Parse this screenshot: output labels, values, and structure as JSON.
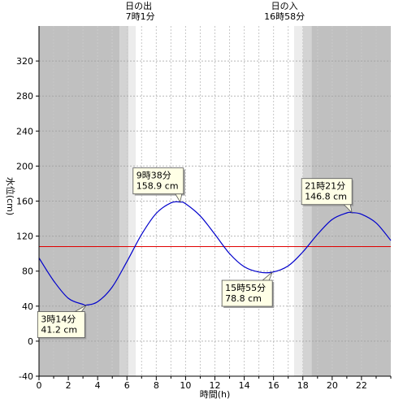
{
  "chart_data": {
    "type": "line",
    "xlabel": "時間(h)",
    "ylabel": "水位(cm)",
    "xlim": [
      0,
      24
    ],
    "ylim": [
      -40,
      360
    ],
    "x_ticks": [
      0,
      2,
      4,
      6,
      8,
      10,
      12,
      14,
      16,
      18,
      20,
      22
    ],
    "y_ticks": [
      -40,
      0,
      40,
      80,
      120,
      160,
      200,
      240,
      280,
      320
    ],
    "grid": true,
    "reference_line": {
      "value": 108,
      "color": "#e00000"
    },
    "sunrise": {
      "label": "日の出",
      "time_label": "7時1分",
      "hour": 7.017
    },
    "sunset": {
      "label": "日の入",
      "time_label": "16時58分",
      "hour": 16.967
    },
    "bands": [
      {
        "from": 0,
        "to": 5.5,
        "kind": "night"
      },
      {
        "from": 5.5,
        "to": 6.1,
        "kind": "twilight"
      },
      {
        "from": 6.1,
        "to": 6.6,
        "kind": "dawn"
      },
      {
        "from": 17.4,
        "to": 18.0,
        "kind": "dawn"
      },
      {
        "from": 18.0,
        "to": 18.6,
        "kind": "twilight"
      },
      {
        "from": 18.6,
        "to": 24,
        "kind": "night"
      }
    ],
    "colors": {
      "night": "#c0c0c0",
      "twilight": "#d3d3d3",
      "dawn": "#ececec",
      "day": "#ffffff",
      "line": "#0000cc",
      "callout_bg": "#ffffe6"
    },
    "series": [
      {
        "x": [
          0,
          1,
          2,
          3,
          3.233,
          4,
          5,
          6,
          7,
          8,
          9,
          9.633,
          10,
          11,
          12,
          13,
          14,
          15,
          15.917,
          17,
          18,
          19,
          20,
          21,
          21.35,
          22,
          23,
          24
        ],
        "values": [
          95,
          69,
          49,
          42,
          41.2,
          45,
          62,
          91,
          122,
          146,
          158,
          158.9,
          157,
          143,
          122,
          100,
          85,
          79,
          78.8,
          86,
          102,
          122,
          139,
          146.5,
          146.8,
          145,
          135,
          115
        ]
      }
    ],
    "annotations": [
      {
        "time": "9時38分",
        "level": "158.9 cm",
        "x": 9.633,
        "y": 158.9
      },
      {
        "time": "21時21分",
        "level": "146.8 cm",
        "x": 21.35,
        "y": 146.8
      },
      {
        "time": "15時55分",
        "level": "78.8 cm",
        "x": 15.917,
        "y": 78.8
      },
      {
        "time": "3時14分",
        "level": "41.2 cm",
        "x": 3.233,
        "y": 41.2
      }
    ]
  }
}
